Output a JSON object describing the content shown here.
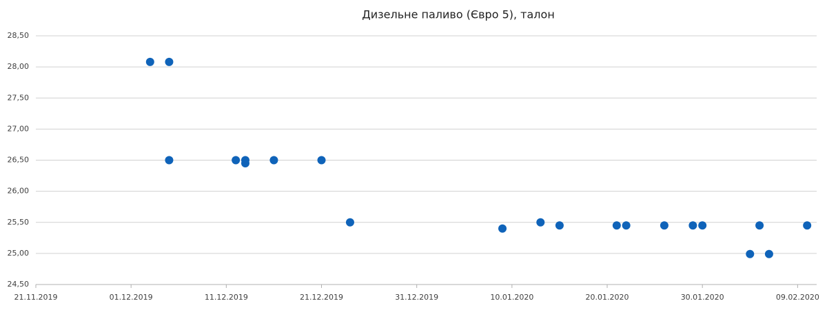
{
  "chart_data": {
    "type": "scatter",
    "title": "Дизельне паливо (Євро 5), талон",
    "x": [
      "03.12.2019",
      "05.12.2019",
      "05.12.2019",
      "12.12.2019",
      "13.12.2019",
      "13.12.2019",
      "16.12.2019",
      "21.12.2019",
      "24.12.2019",
      "09.01.2020",
      "13.01.2020",
      "15.01.2020",
      "21.01.2020",
      "22.01.2020",
      "26.01.2020",
      "29.01.2020",
      "30.01.2020",
      "04.02.2020",
      "05.02.2020",
      "06.02.2020",
      "10.02.2020"
    ],
    "values": [
      28.08,
      28.08,
      26.5,
      26.5,
      26.5,
      26.45,
      26.5,
      26.5,
      25.5,
      25.4,
      25.5,
      25.45,
      25.45,
      25.45,
      25.45,
      25.45,
      25.45,
      24.99,
      25.45,
      24.99,
      25.45
    ],
    "color": "#0f63b9",
    "xlim": [
      "21.11.2019",
      "11.02.2020"
    ],
    "xticks": [
      "21.11.2019",
      "01.12.2019",
      "11.12.2019",
      "21.12.2019",
      "31.12.2019",
      "10.01.2020",
      "20.01.2020",
      "30.01.2020",
      "09.02.2020"
    ],
    "ylim": [
      24.5,
      28.5
    ],
    "yticks": [
      {
        "value": 24.5,
        "label": "24,50"
      },
      {
        "value": 25,
        "label": "25,00"
      },
      {
        "value": 25.5,
        "label": "25,50"
      },
      {
        "value": 26,
        "label": "26,00"
      },
      {
        "value": 26.5,
        "label": "26,50"
      },
      {
        "value": 27,
        "label": "27,00"
      },
      {
        "value": 27.5,
        "label": "27,50"
      },
      {
        "value": 28,
        "label": "28,00"
      },
      {
        "value": 28.5,
        "label": "28,50"
      }
    ],
    "grid": true
  }
}
